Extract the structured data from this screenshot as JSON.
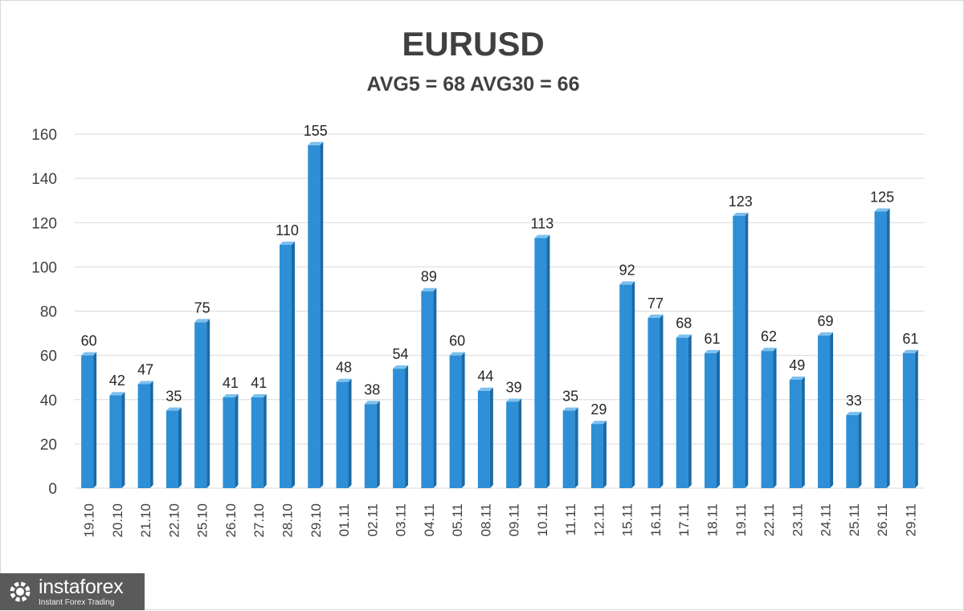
{
  "chart_data": {
    "type": "bar",
    "title": "EURUSD",
    "subtitle": "AVG5 = 68 AVG30 = 66",
    "categories": [
      "19.10",
      "20.10",
      "21.10",
      "22.10",
      "25.10",
      "26.10",
      "27.10",
      "28.10",
      "29.10",
      "01.11",
      "02.11",
      "03.11",
      "04.11",
      "05.11",
      "08.11",
      "09.11",
      "10.11",
      "11.11",
      "12.11",
      "15.11",
      "16.11",
      "17.11",
      "18.11",
      "19.11",
      "22.11",
      "23.11",
      "24.11",
      "25.11",
      "26.11",
      "29.11"
    ],
    "values": [
      60,
      42,
      47,
      35,
      75,
      41,
      41,
      110,
      155,
      48,
      38,
      54,
      89,
      60,
      44,
      39,
      113,
      35,
      29,
      92,
      77,
      68,
      61,
      123,
      62,
      49,
      69,
      33,
      125,
      61
    ],
    "ylim": [
      0,
      160
    ],
    "yticks": [
      "0",
      "20",
      "40",
      "60",
      "80",
      "100",
      "120",
      "140",
      "160"
    ],
    "grid": true,
    "data_labels": true,
    "bar_color": "#2e8fd6",
    "bar_side_color": "#1a6aa8",
    "xlabel": "",
    "ylabel": ""
  },
  "logo": {
    "name": "instaforex",
    "tagline": "Instant Forex Trading"
  }
}
